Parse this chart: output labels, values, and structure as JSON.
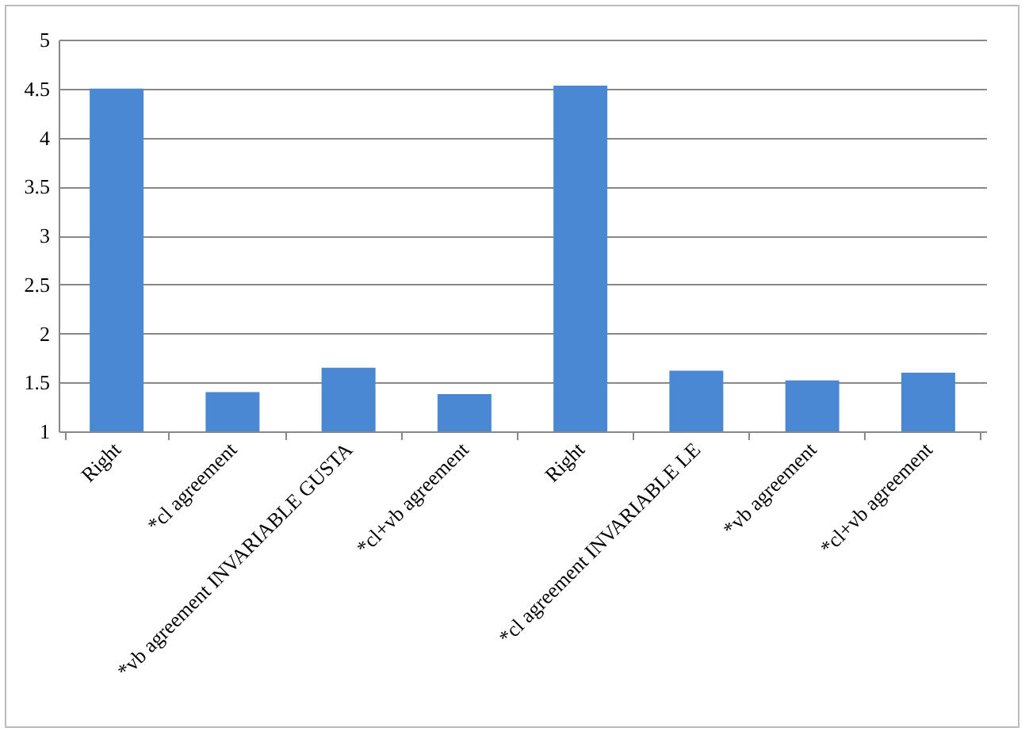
{
  "chart_data": {
    "type": "bar",
    "categories": [
      "Right",
      "*cl agreement",
      "*vb agreement INVARIABLE GUSTA",
      "*cl+vb agreement",
      "Right",
      "*cl agreement INVARIABLE LE",
      "*vb agreement",
      "*cl+vb agreement"
    ],
    "values": [
      4.5,
      1.4,
      1.65,
      1.38,
      4.53,
      1.62,
      1.52,
      1.6
    ],
    "color": "#4a88d4",
    "ylim": [
      1,
      5
    ],
    "yticks": [
      1,
      1.5,
      2,
      2.5,
      3,
      3.5,
      4,
      4.5,
      5
    ],
    "grid": "y"
  }
}
